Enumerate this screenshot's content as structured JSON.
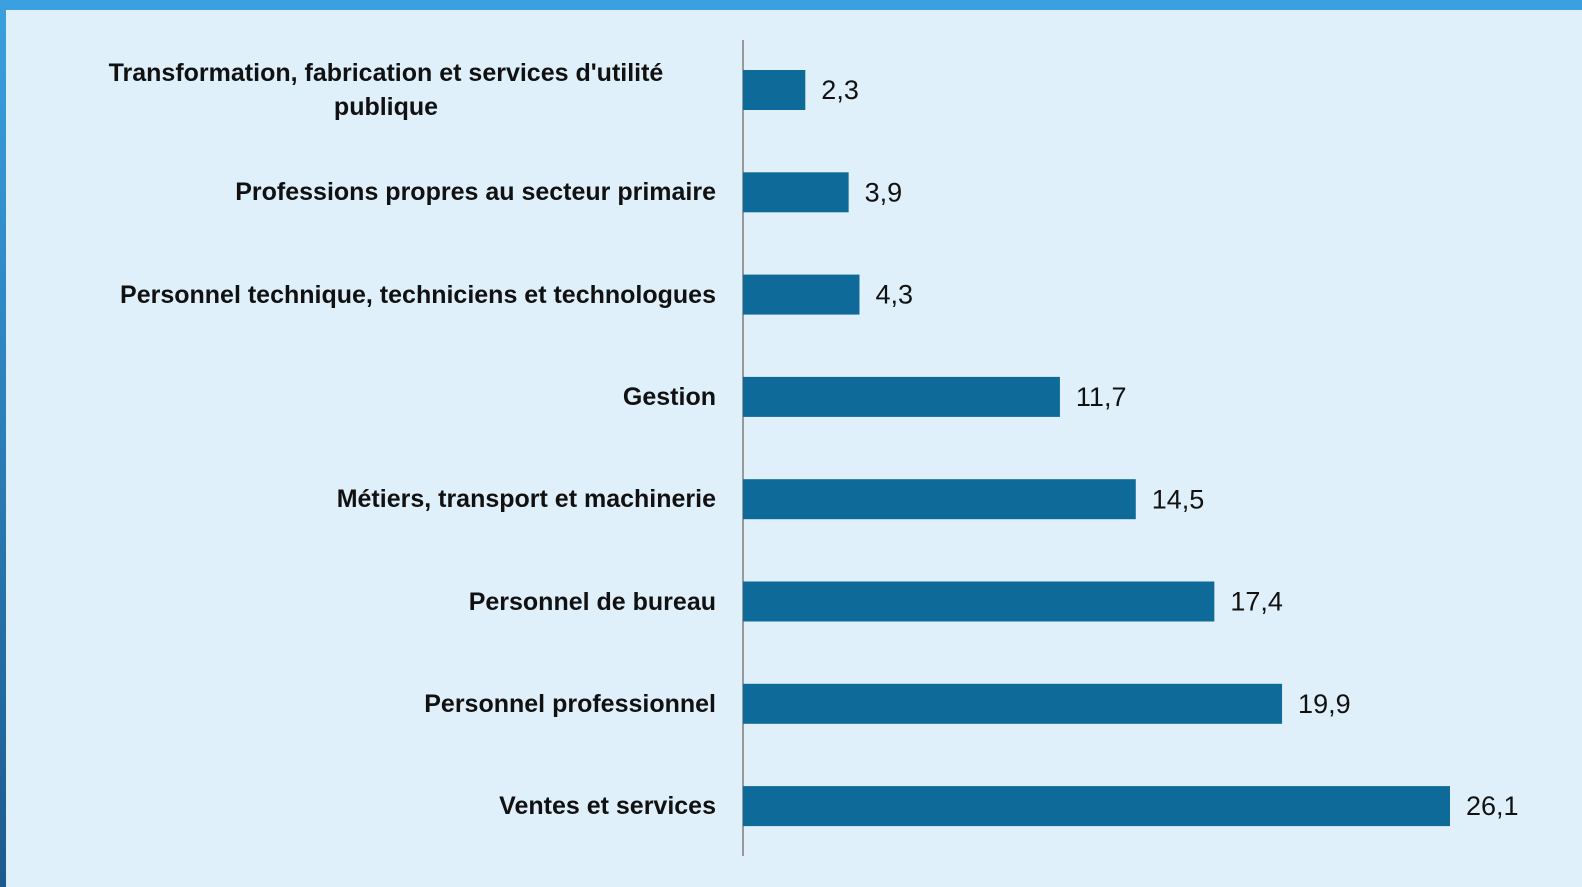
{
  "chart_data": {
    "type": "bar",
    "orientation": "horizontal",
    "categories": [
      "Transformation, fabrication et services d'utilité publique",
      "Professions propres au secteur primaire",
      "Personnel technique, techniciens et technologues",
      "Gestion",
      "Métiers, transport et machinerie",
      "Personnel de bureau",
      "Personnel professionnel",
      "Ventes et services"
    ],
    "values": [
      2.3,
      3.9,
      4.3,
      11.7,
      14.5,
      17.4,
      19.9,
      26.1
    ],
    "value_labels": [
      "2,3",
      "3,9",
      "4,3",
      "11,7",
      "14,5",
      "17,4",
      "19,9",
      "26,1"
    ],
    "color": "#0e6b99"
  }
}
